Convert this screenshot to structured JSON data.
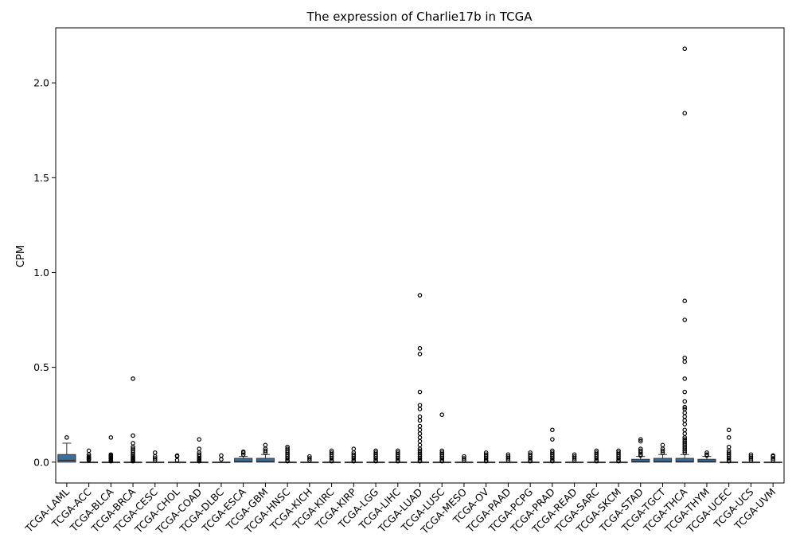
{
  "chart_data": {
    "type": "box",
    "title": "The expression of Charlie17b in TCGA",
    "xlabel": "",
    "ylabel": "CPM",
    "ylim": [
      -0.11,
      2.29
    ],
    "yticks": [
      0.0,
      0.5,
      1.0,
      1.5,
      2.0
    ],
    "ytick_labels": [
      "0.0",
      "0.5",
      "1.0",
      "1.5",
      "2.0"
    ],
    "grid": false,
    "box_color": "#3b6f9c",
    "categories": [
      "TCGA-LAML",
      "TCGA-ACC",
      "TCGA-BLCA",
      "TCGA-BRCA",
      "TCGA-CESC",
      "TCGA-CHOL",
      "TCGA-COAD",
      "TCGA-DLBC",
      "TCGA-ESCA",
      "TCGA-GBM",
      "TCGA-HNSC",
      "TCGA-KICH",
      "TCGA-KIRC",
      "TCGA-KIRP",
      "TCGA-LGG",
      "TCGA-LIHC",
      "TCGA-LUAD",
      "TCGA-LUSC",
      "TCGA-MESO",
      "TCGA-OV",
      "TCGA-PAAD",
      "TCGA-PCPG",
      "TCGA-PRAD",
      "TCGA-READ",
      "TCGA-SARC",
      "TCGA-SKCM",
      "TCGA-STAD",
      "TCGA-TGCT",
      "TCGA-THCA",
      "TCGA-THYM",
      "TCGA-UCEC",
      "TCGA-UCS",
      "TCGA-UVM"
    ],
    "boxes": [
      {
        "q1": 0.0,
        "median": 0.01,
        "q3": 0.04,
        "whislo": 0.0,
        "whishi": 0.1,
        "fliers": [
          0.13
        ]
      },
      {
        "q1": 0.0,
        "median": 0.0,
        "q3": 0.0,
        "whislo": 0.0,
        "whishi": 0.0,
        "fliers": [
          0.01,
          0.015,
          0.02,
          0.025,
          0.03,
          0.04,
          0.06
        ]
      },
      {
        "q1": 0.0,
        "median": 0.0,
        "q3": 0.0,
        "whislo": 0.0,
        "whishi": 0.0,
        "fliers": [
          0.005,
          0.01,
          0.015,
          0.02,
          0.025,
          0.03,
          0.035,
          0.04,
          0.13
        ]
      },
      {
        "q1": 0.0,
        "median": 0.0,
        "q3": 0.0,
        "whislo": 0.0,
        "whishi": 0.0,
        "fliers": [
          0.005,
          0.01,
          0.015,
          0.02,
          0.025,
          0.03,
          0.04,
          0.05,
          0.06,
          0.07,
          0.08,
          0.1,
          0.14,
          0.44
        ]
      },
      {
        "q1": 0.0,
        "median": 0.0,
        "q3": 0.0,
        "whislo": 0.0,
        "whishi": 0.0,
        "fliers": [
          0.01,
          0.02,
          0.03,
          0.05
        ]
      },
      {
        "q1": 0.0,
        "median": 0.0,
        "q3": 0.0,
        "whislo": 0.0,
        "whishi": 0.0,
        "fliers": [
          0.01,
          0.03,
          0.035
        ]
      },
      {
        "q1": 0.0,
        "median": 0.0,
        "q3": 0.0,
        "whislo": 0.0,
        "whishi": 0.0,
        "fliers": [
          0.005,
          0.01,
          0.015,
          0.02,
          0.03,
          0.04,
          0.05,
          0.07,
          0.12
        ]
      },
      {
        "q1": 0.0,
        "median": 0.0,
        "q3": 0.0,
        "whislo": 0.0,
        "whishi": 0.0,
        "fliers": [
          0.015,
          0.035
        ]
      },
      {
        "q1": 0.0,
        "median": 0.005,
        "q3": 0.02,
        "whislo": 0.0,
        "whishi": 0.03,
        "fliers": [
          0.04,
          0.05,
          0.055
        ]
      },
      {
        "q1": 0.0,
        "median": 0.005,
        "q3": 0.02,
        "whislo": 0.0,
        "whishi": 0.04,
        "fliers": [
          0.05,
          0.06,
          0.07,
          0.09
        ]
      },
      {
        "q1": 0.0,
        "median": 0.0,
        "q3": 0.0,
        "whislo": 0.0,
        "whishi": 0.0,
        "fliers": [
          0.005,
          0.01,
          0.02,
          0.03,
          0.04,
          0.05,
          0.06,
          0.07,
          0.08
        ]
      },
      {
        "q1": 0.0,
        "median": 0.0,
        "q3": 0.0,
        "whislo": 0.0,
        "whishi": 0.0,
        "fliers": [
          0.01,
          0.02,
          0.03
        ]
      },
      {
        "q1": 0.0,
        "median": 0.0,
        "q3": 0.0,
        "whislo": 0.0,
        "whishi": 0.0,
        "fliers": [
          0.005,
          0.01,
          0.02,
          0.03,
          0.04,
          0.05,
          0.06
        ]
      },
      {
        "q1": 0.0,
        "median": 0.0,
        "q3": 0.0,
        "whislo": 0.0,
        "whishi": 0.0,
        "fliers": [
          0.005,
          0.01,
          0.02,
          0.03,
          0.04,
          0.05,
          0.07
        ]
      },
      {
        "q1": 0.0,
        "median": 0.0,
        "q3": 0.0,
        "whislo": 0.0,
        "whishi": 0.0,
        "fliers": [
          0.005,
          0.01,
          0.02,
          0.03,
          0.04,
          0.05,
          0.06
        ]
      },
      {
        "q1": 0.0,
        "median": 0.0,
        "q3": 0.0,
        "whislo": 0.0,
        "whishi": 0.0,
        "fliers": [
          0.005,
          0.01,
          0.02,
          0.03,
          0.04,
          0.05,
          0.06
        ]
      },
      {
        "q1": 0.0,
        "median": 0.0,
        "q3": 0.0,
        "whislo": 0.0,
        "whishi": 0.0,
        "fliers": [
          0.005,
          0.01,
          0.02,
          0.03,
          0.04,
          0.05,
          0.06,
          0.07,
          0.09,
          0.11,
          0.13,
          0.15,
          0.17,
          0.19,
          0.22,
          0.24,
          0.28,
          0.3,
          0.37,
          0.57,
          0.6,
          0.88
        ]
      },
      {
        "q1": 0.0,
        "median": 0.0,
        "q3": 0.0,
        "whislo": 0.0,
        "whishi": 0.0,
        "fliers": [
          0.005,
          0.01,
          0.02,
          0.03,
          0.04,
          0.05,
          0.06,
          0.25
        ]
      },
      {
        "q1": 0.0,
        "median": 0.0,
        "q3": 0.0,
        "whislo": 0.0,
        "whishi": 0.0,
        "fliers": [
          0.01,
          0.02,
          0.03
        ]
      },
      {
        "q1": 0.0,
        "median": 0.0,
        "q3": 0.0,
        "whislo": 0.0,
        "whishi": 0.0,
        "fliers": [
          0.005,
          0.01,
          0.02,
          0.03,
          0.04,
          0.05
        ]
      },
      {
        "q1": 0.0,
        "median": 0.0,
        "q3": 0.0,
        "whislo": 0.0,
        "whishi": 0.0,
        "fliers": [
          0.01,
          0.02,
          0.03,
          0.04
        ]
      },
      {
        "q1": 0.0,
        "median": 0.0,
        "q3": 0.0,
        "whislo": 0.0,
        "whishi": 0.0,
        "fliers": [
          0.005,
          0.01,
          0.02,
          0.03,
          0.04,
          0.05
        ]
      },
      {
        "q1": 0.0,
        "median": 0.0,
        "q3": 0.0,
        "whislo": 0.0,
        "whishi": 0.0,
        "fliers": [
          0.005,
          0.01,
          0.02,
          0.03,
          0.04,
          0.05,
          0.06,
          0.12,
          0.17
        ]
      },
      {
        "q1": 0.0,
        "median": 0.0,
        "q3": 0.0,
        "whislo": 0.0,
        "whishi": 0.0,
        "fliers": [
          0.01,
          0.02,
          0.03,
          0.04
        ]
      },
      {
        "q1": 0.0,
        "median": 0.0,
        "q3": 0.0,
        "whislo": 0.0,
        "whishi": 0.0,
        "fliers": [
          0.005,
          0.01,
          0.02,
          0.03,
          0.04,
          0.05,
          0.06
        ]
      },
      {
        "q1": 0.0,
        "median": 0.0,
        "q3": 0.0,
        "whislo": 0.0,
        "whishi": 0.0,
        "fliers": [
          0.005,
          0.01,
          0.02,
          0.03,
          0.04,
          0.05,
          0.06
        ]
      },
      {
        "q1": 0.0,
        "median": 0.005,
        "q3": 0.015,
        "whislo": 0.0,
        "whishi": 0.03,
        "fliers": [
          0.035,
          0.04,
          0.05,
          0.06,
          0.07,
          0.11,
          0.12
        ]
      },
      {
        "q1": 0.0,
        "median": 0.005,
        "q3": 0.02,
        "whislo": 0.0,
        "whishi": 0.04,
        "fliers": [
          0.05,
          0.06,
          0.07,
          0.09
        ]
      },
      {
        "q1": 0.0,
        "median": 0.005,
        "q3": 0.02,
        "whislo": 0.0,
        "whishi": 0.04,
        "fliers": [
          0.05,
          0.06,
          0.07,
          0.08,
          0.09,
          0.1,
          0.11,
          0.12,
          0.13,
          0.15,
          0.17,
          0.2,
          0.22,
          0.24,
          0.26,
          0.28,
          0.29,
          0.32,
          0.37,
          0.44,
          0.53,
          0.55,
          0.75,
          0.85,
          1.84,
          2.18
        ]
      },
      {
        "q1": 0.0,
        "median": 0.005,
        "q3": 0.015,
        "whislo": 0.0,
        "whishi": 0.03,
        "fliers": [
          0.035,
          0.04,
          0.05
        ]
      },
      {
        "q1": 0.0,
        "median": 0.0,
        "q3": 0.0,
        "whislo": 0.0,
        "whishi": 0.0,
        "fliers": [
          0.005,
          0.01,
          0.02,
          0.03,
          0.04,
          0.05,
          0.06,
          0.08,
          0.13,
          0.17
        ]
      },
      {
        "q1": 0.0,
        "median": 0.0,
        "q3": 0.0,
        "whislo": 0.0,
        "whishi": 0.0,
        "fliers": [
          0.01,
          0.02,
          0.03,
          0.04
        ]
      },
      {
        "q1": 0.0,
        "median": 0.0,
        "q3": 0.0,
        "whislo": 0.0,
        "whishi": 0.0,
        "fliers": [
          0.01,
          0.02,
          0.03,
          0.035
        ]
      }
    ]
  }
}
